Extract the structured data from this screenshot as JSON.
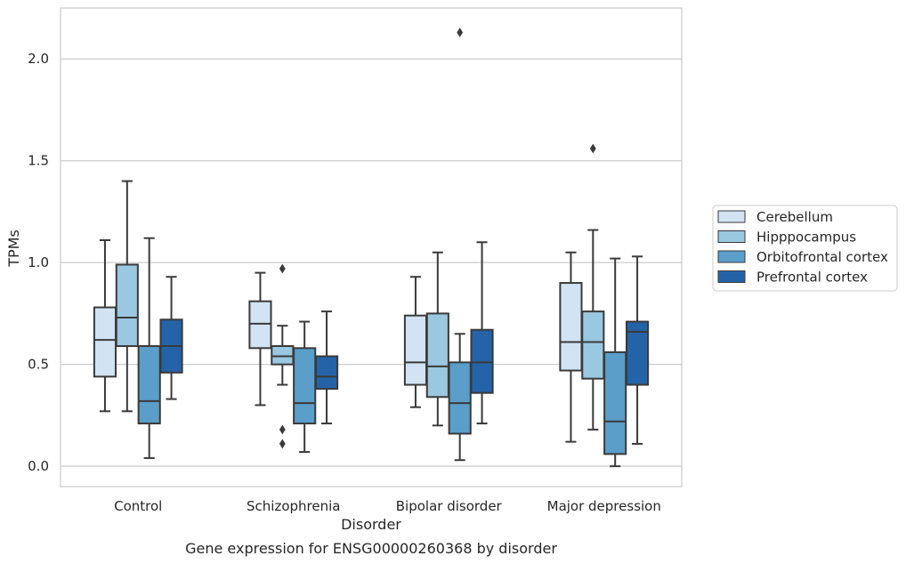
{
  "chart_data": {
    "type": "box",
    "xlabel": "Disorder",
    "ylabel": "TPMs",
    "caption": "Gene expression for ENSG00000260368 by disorder",
    "ylim": [
      -0.1,
      2.25
    ],
    "yticks": [
      0.0,
      0.5,
      1.0,
      1.5,
      2.0
    ],
    "ytick_labels": [
      "0.0",
      "0.5",
      "1.0",
      "1.5",
      "2.0"
    ],
    "grid": "horizontal",
    "legend_position": "right",
    "categories": [
      "Control",
      "Schizophrenia",
      "Bipolar disorder",
      "Major depression"
    ],
    "series": [
      {
        "name": "Cerebellum",
        "color": "#d2e3f3",
        "boxes": [
          {
            "whislo": 0.27,
            "q1": 0.44,
            "med": 0.62,
            "q3": 0.78,
            "whishi": 1.11,
            "fliers": []
          },
          {
            "whislo": 0.3,
            "q1": 0.58,
            "med": 0.7,
            "q3": 0.81,
            "whishi": 0.95,
            "fliers": []
          },
          {
            "whislo": 0.29,
            "q1": 0.4,
            "med": 0.51,
            "q3": 0.74,
            "whishi": 0.93,
            "fliers": []
          },
          {
            "whislo": 0.12,
            "q1": 0.47,
            "med": 0.61,
            "q3": 0.9,
            "whishi": 1.05,
            "fliers": []
          }
        ]
      },
      {
        "name": "Hipppocampus",
        "color": "#9ac8e0",
        "boxes": [
          {
            "whislo": 0.27,
            "q1": 0.59,
            "med": 0.73,
            "q3": 0.99,
            "whishi": 1.4,
            "fliers": []
          },
          {
            "whislo": 0.4,
            "q1": 0.5,
            "med": 0.54,
            "q3": 0.59,
            "whishi": 0.69,
            "fliers": [
              0.97,
              0.18,
              0.11
            ]
          },
          {
            "whislo": 0.2,
            "q1": 0.34,
            "med": 0.49,
            "q3": 0.75,
            "whishi": 1.05,
            "fliers": []
          },
          {
            "whislo": 0.18,
            "q1": 0.43,
            "med": 0.61,
            "q3": 0.76,
            "whishi": 1.16,
            "fliers": [
              1.56
            ]
          }
        ]
      },
      {
        "name": "Orbitofrontal cortex",
        "color": "#5a9ec9",
        "boxes": [
          {
            "whislo": 0.04,
            "q1": 0.21,
            "med": 0.32,
            "q3": 0.59,
            "whishi": 1.12,
            "fliers": []
          },
          {
            "whislo": 0.07,
            "q1": 0.21,
            "med": 0.31,
            "q3": 0.58,
            "whishi": 0.71,
            "fliers": []
          },
          {
            "whislo": 0.03,
            "q1": 0.16,
            "med": 0.31,
            "q3": 0.51,
            "whishi": 0.65,
            "fliers": [
              2.13
            ]
          },
          {
            "whislo": 0.0,
            "q1": 0.06,
            "med": 0.22,
            "q3": 0.56,
            "whishi": 1.02,
            "fliers": []
          }
        ]
      },
      {
        "name": "Prefrontal cortex",
        "color": "#2563a8",
        "boxes": [
          {
            "whislo": 0.33,
            "q1": 0.46,
            "med": 0.59,
            "q3": 0.72,
            "whishi": 0.93,
            "fliers": []
          },
          {
            "whislo": 0.21,
            "q1": 0.38,
            "med": 0.44,
            "q3": 0.54,
            "whishi": 0.76,
            "fliers": []
          },
          {
            "whislo": 0.21,
            "q1": 0.36,
            "med": 0.51,
            "q3": 0.67,
            "whishi": 1.1,
            "fliers": []
          },
          {
            "whislo": 0.11,
            "q1": 0.4,
            "med": 0.66,
            "q3": 0.71,
            "whishi": 1.03,
            "fliers": []
          }
        ]
      }
    ]
  }
}
